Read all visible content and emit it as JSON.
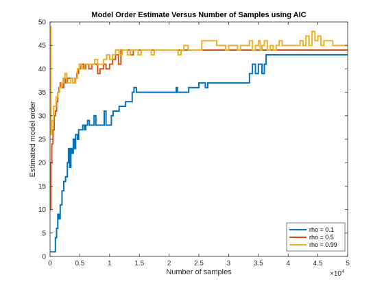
{
  "chart_data": {
    "type": "line",
    "title": "Model Order Estimate Versus Number of Samples using AIC",
    "xlabel": "Number of samples",
    "ylabel": "Estimated model order",
    "x_exponent_label": "×10^4",
    "xlim": [
      0,
      50000
    ],
    "ylim": [
      0,
      50
    ],
    "x_ticks": [
      0,
      5000,
      10000,
      15000,
      20000,
      25000,
      30000,
      35000,
      40000,
      45000,
      50000
    ],
    "x_tick_labels": [
      "0",
      "0.5",
      "1",
      "1.5",
      "2",
      "2.5",
      "3",
      "3.5",
      "4",
      "4.5",
      "5"
    ],
    "y_ticks": [
      0,
      5,
      10,
      15,
      20,
      25,
      30,
      35,
      40,
      45,
      50
    ],
    "y_tick_labels": [
      "0",
      "5",
      "10",
      "15",
      "20",
      "25",
      "30",
      "35",
      "40",
      "45",
      "50"
    ],
    "grid": false,
    "legend_position": "bottom-right",
    "series": [
      {
        "name": "rho = 0.1",
        "color": "#0072BD",
        "points": [
          [
            0,
            1
          ],
          [
            700,
            1
          ],
          [
            900,
            4
          ],
          [
            1100,
            6
          ],
          [
            1300,
            9
          ],
          [
            1500,
            8
          ],
          [
            1700,
            11
          ],
          [
            2000,
            14
          ],
          [
            2300,
            16
          ],
          [
            2600,
            17
          ],
          [
            2900,
            20
          ],
          [
            3100,
            23
          ],
          [
            3300,
            19
          ],
          [
            3500,
            23
          ],
          [
            3700,
            22
          ],
          [
            3900,
            25
          ],
          [
            4100,
            23
          ],
          [
            4300,
            26
          ],
          [
            4600,
            25
          ],
          [
            4800,
            27
          ],
          [
            5200,
            27
          ],
          [
            5500,
            28
          ],
          [
            5800,
            27
          ],
          [
            6000,
            28
          ],
          [
            6300,
            29
          ],
          [
            6600,
            28
          ],
          [
            7100,
            28
          ],
          [
            7400,
            30
          ],
          [
            7700,
            28
          ],
          [
            8800,
            28
          ],
          [
            9100,
            31
          ],
          [
            9400,
            28
          ],
          [
            10000,
            28
          ],
          [
            10300,
            30
          ],
          [
            10600,
            31
          ],
          [
            11300,
            31
          ],
          [
            11600,
            32
          ],
          [
            12400,
            32
          ],
          [
            12700,
            33
          ],
          [
            13500,
            33
          ],
          [
            13800,
            35
          ],
          [
            14100,
            36
          ],
          [
            14500,
            35
          ],
          [
            15500,
            35
          ],
          [
            16500,
            35
          ],
          [
            21000,
            35
          ],
          [
            21200,
            36
          ],
          [
            21400,
            35
          ],
          [
            23000,
            35
          ],
          [
            23300,
            36
          ],
          [
            24500,
            36
          ],
          [
            25000,
            37
          ],
          [
            25800,
            37
          ],
          [
            26100,
            36
          ],
          [
            26500,
            37
          ],
          [
            27500,
            37
          ],
          [
            28000,
            37
          ],
          [
            33000,
            37
          ],
          [
            33500,
            39
          ],
          [
            34000,
            41
          ],
          [
            34500,
            39
          ],
          [
            35000,
            41
          ],
          [
            35600,
            39
          ],
          [
            36000,
            41
          ],
          [
            36300,
            43
          ],
          [
            42000,
            43
          ],
          [
            50000,
            43
          ]
        ]
      },
      {
        "name": "rho = 0.5",
        "color": "#D95319",
        "points": [
          [
            0,
            10
          ],
          [
            100,
            20
          ],
          [
            300,
            24
          ],
          [
            500,
            27
          ],
          [
            700,
            30
          ],
          [
            900,
            31
          ],
          [
            1100,
            33
          ],
          [
            1300,
            35
          ],
          [
            1500,
            36
          ],
          [
            1700,
            37
          ],
          [
            2000,
            36
          ],
          [
            2300,
            38
          ],
          [
            2600,
            37
          ],
          [
            2900,
            38
          ],
          [
            3500,
            38
          ],
          [
            3800,
            37
          ],
          [
            4200,
            38
          ],
          [
            4500,
            39
          ],
          [
            4800,
            40
          ],
          [
            5200,
            41
          ],
          [
            5600,
            40
          ],
          [
            6000,
            41
          ],
          [
            6500,
            40
          ],
          [
            7000,
            41
          ],
          [
            7600,
            41
          ],
          [
            8000,
            39
          ],
          [
            8400,
            40
          ],
          [
            9000,
            41
          ],
          [
            9400,
            40
          ],
          [
            10000,
            41
          ],
          [
            10500,
            42
          ],
          [
            11000,
            43
          ],
          [
            11500,
            41
          ],
          [
            11900,
            44
          ],
          [
            13000,
            44
          ],
          [
            13500,
            43
          ],
          [
            14000,
            44
          ],
          [
            15000,
            44
          ],
          [
            20000,
            44
          ],
          [
            25000,
            44
          ],
          [
            30000,
            44
          ],
          [
            35000,
            44
          ],
          [
            40000,
            44
          ],
          [
            50000,
            44
          ]
        ]
      },
      {
        "name": "rho = 0.99",
        "color": "#EDB120",
        "points": [
          [
            0,
            49
          ],
          [
            150,
            26
          ],
          [
            300,
            29
          ],
          [
            600,
            32
          ],
          [
            1000,
            34
          ],
          [
            1300,
            35
          ],
          [
            1600,
            36
          ],
          [
            1900,
            37
          ],
          [
            2200,
            38
          ],
          [
            2500,
            39
          ],
          [
            2800,
            37
          ],
          [
            3100,
            37
          ],
          [
            3500,
            38
          ],
          [
            3800,
            37
          ],
          [
            4300,
            38
          ],
          [
            4600,
            40
          ],
          [
            4900,
            41
          ],
          [
            5300,
            40
          ],
          [
            5800,
            41
          ],
          [
            6500,
            41
          ],
          [
            7100,
            41
          ],
          [
            7500,
            42
          ],
          [
            8000,
            41
          ],
          [
            9000,
            42
          ],
          [
            9500,
            43
          ],
          [
            10000,
            42
          ],
          [
            10500,
            43
          ],
          [
            11000,
            44
          ],
          [
            11600,
            43
          ],
          [
            12100,
            44
          ],
          [
            13000,
            43
          ],
          [
            13500,
            44
          ],
          [
            14400,
            44
          ],
          [
            14800,
            43
          ],
          [
            15300,
            44
          ],
          [
            16000,
            44
          ],
          [
            17000,
            43
          ],
          [
            17500,
            44
          ],
          [
            21000,
            44
          ],
          [
            21500,
            43
          ],
          [
            22000,
            44
          ],
          [
            22500,
            45
          ],
          [
            23200,
            44
          ],
          [
            25000,
            44
          ],
          [
            25500,
            46
          ],
          [
            27500,
            46
          ],
          [
            28000,
            45
          ],
          [
            29000,
            45
          ],
          [
            29500,
            44
          ],
          [
            30000,
            45
          ],
          [
            31000,
            45
          ],
          [
            31500,
            44
          ],
          [
            32000,
            45
          ],
          [
            33000,
            45
          ],
          [
            33500,
            46
          ],
          [
            34000,
            44
          ],
          [
            34500,
            45
          ],
          [
            35000,
            46
          ],
          [
            35300,
            44
          ],
          [
            35600,
            45
          ],
          [
            36000,
            46
          ],
          [
            36500,
            44
          ],
          [
            37000,
            45
          ],
          [
            37500,
            44
          ],
          [
            38000,
            45
          ],
          [
            38500,
            46
          ],
          [
            39000,
            45
          ],
          [
            40000,
            45
          ],
          [
            41000,
            45
          ],
          [
            42000,
            46
          ],
          [
            42500,
            45
          ],
          [
            43000,
            47
          ],
          [
            43500,
            45
          ],
          [
            44000,
            48
          ],
          [
            44500,
            46
          ],
          [
            45000,
            47
          ],
          [
            45500,
            45
          ],
          [
            46000,
            46
          ],
          [
            47000,
            46
          ],
          [
            47500,
            45
          ],
          [
            48000,
            45
          ],
          [
            50000,
            45
          ]
        ]
      }
    ]
  }
}
